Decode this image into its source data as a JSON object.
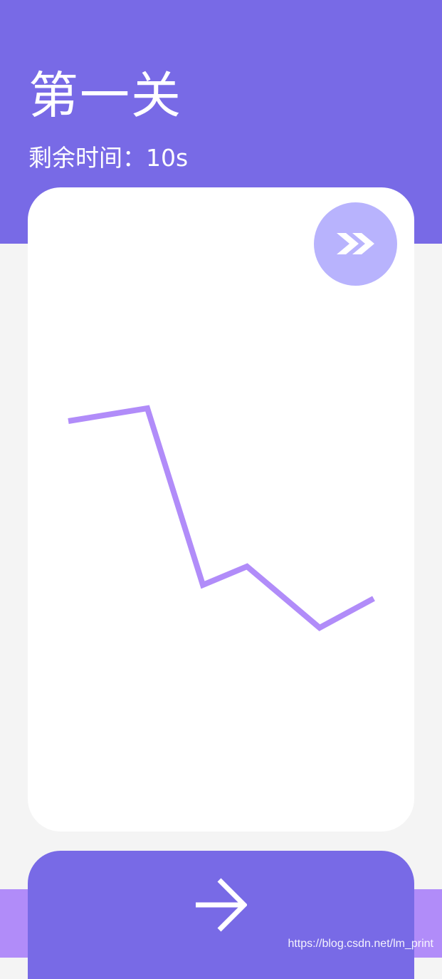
{
  "header": {
    "title": "第一关",
    "timer_label": "剩余时间：",
    "timer_value": "10s"
  },
  "card": {
    "skip_icon": "double-chevron-right-icon",
    "path": {
      "color": "#b18cf9",
      "note_points": "zigzag line drawn in card"
    }
  },
  "footer": {
    "next_icon": "arrow-right-icon",
    "watermark": "https://blog.csdn.net/lm_print"
  },
  "colors": {
    "primary": "#786ae6",
    "skip_bg": "#b8b3fd",
    "accent": "#b18cf9",
    "background": "#f4f4f4",
    "card": "#ffffff"
  }
}
